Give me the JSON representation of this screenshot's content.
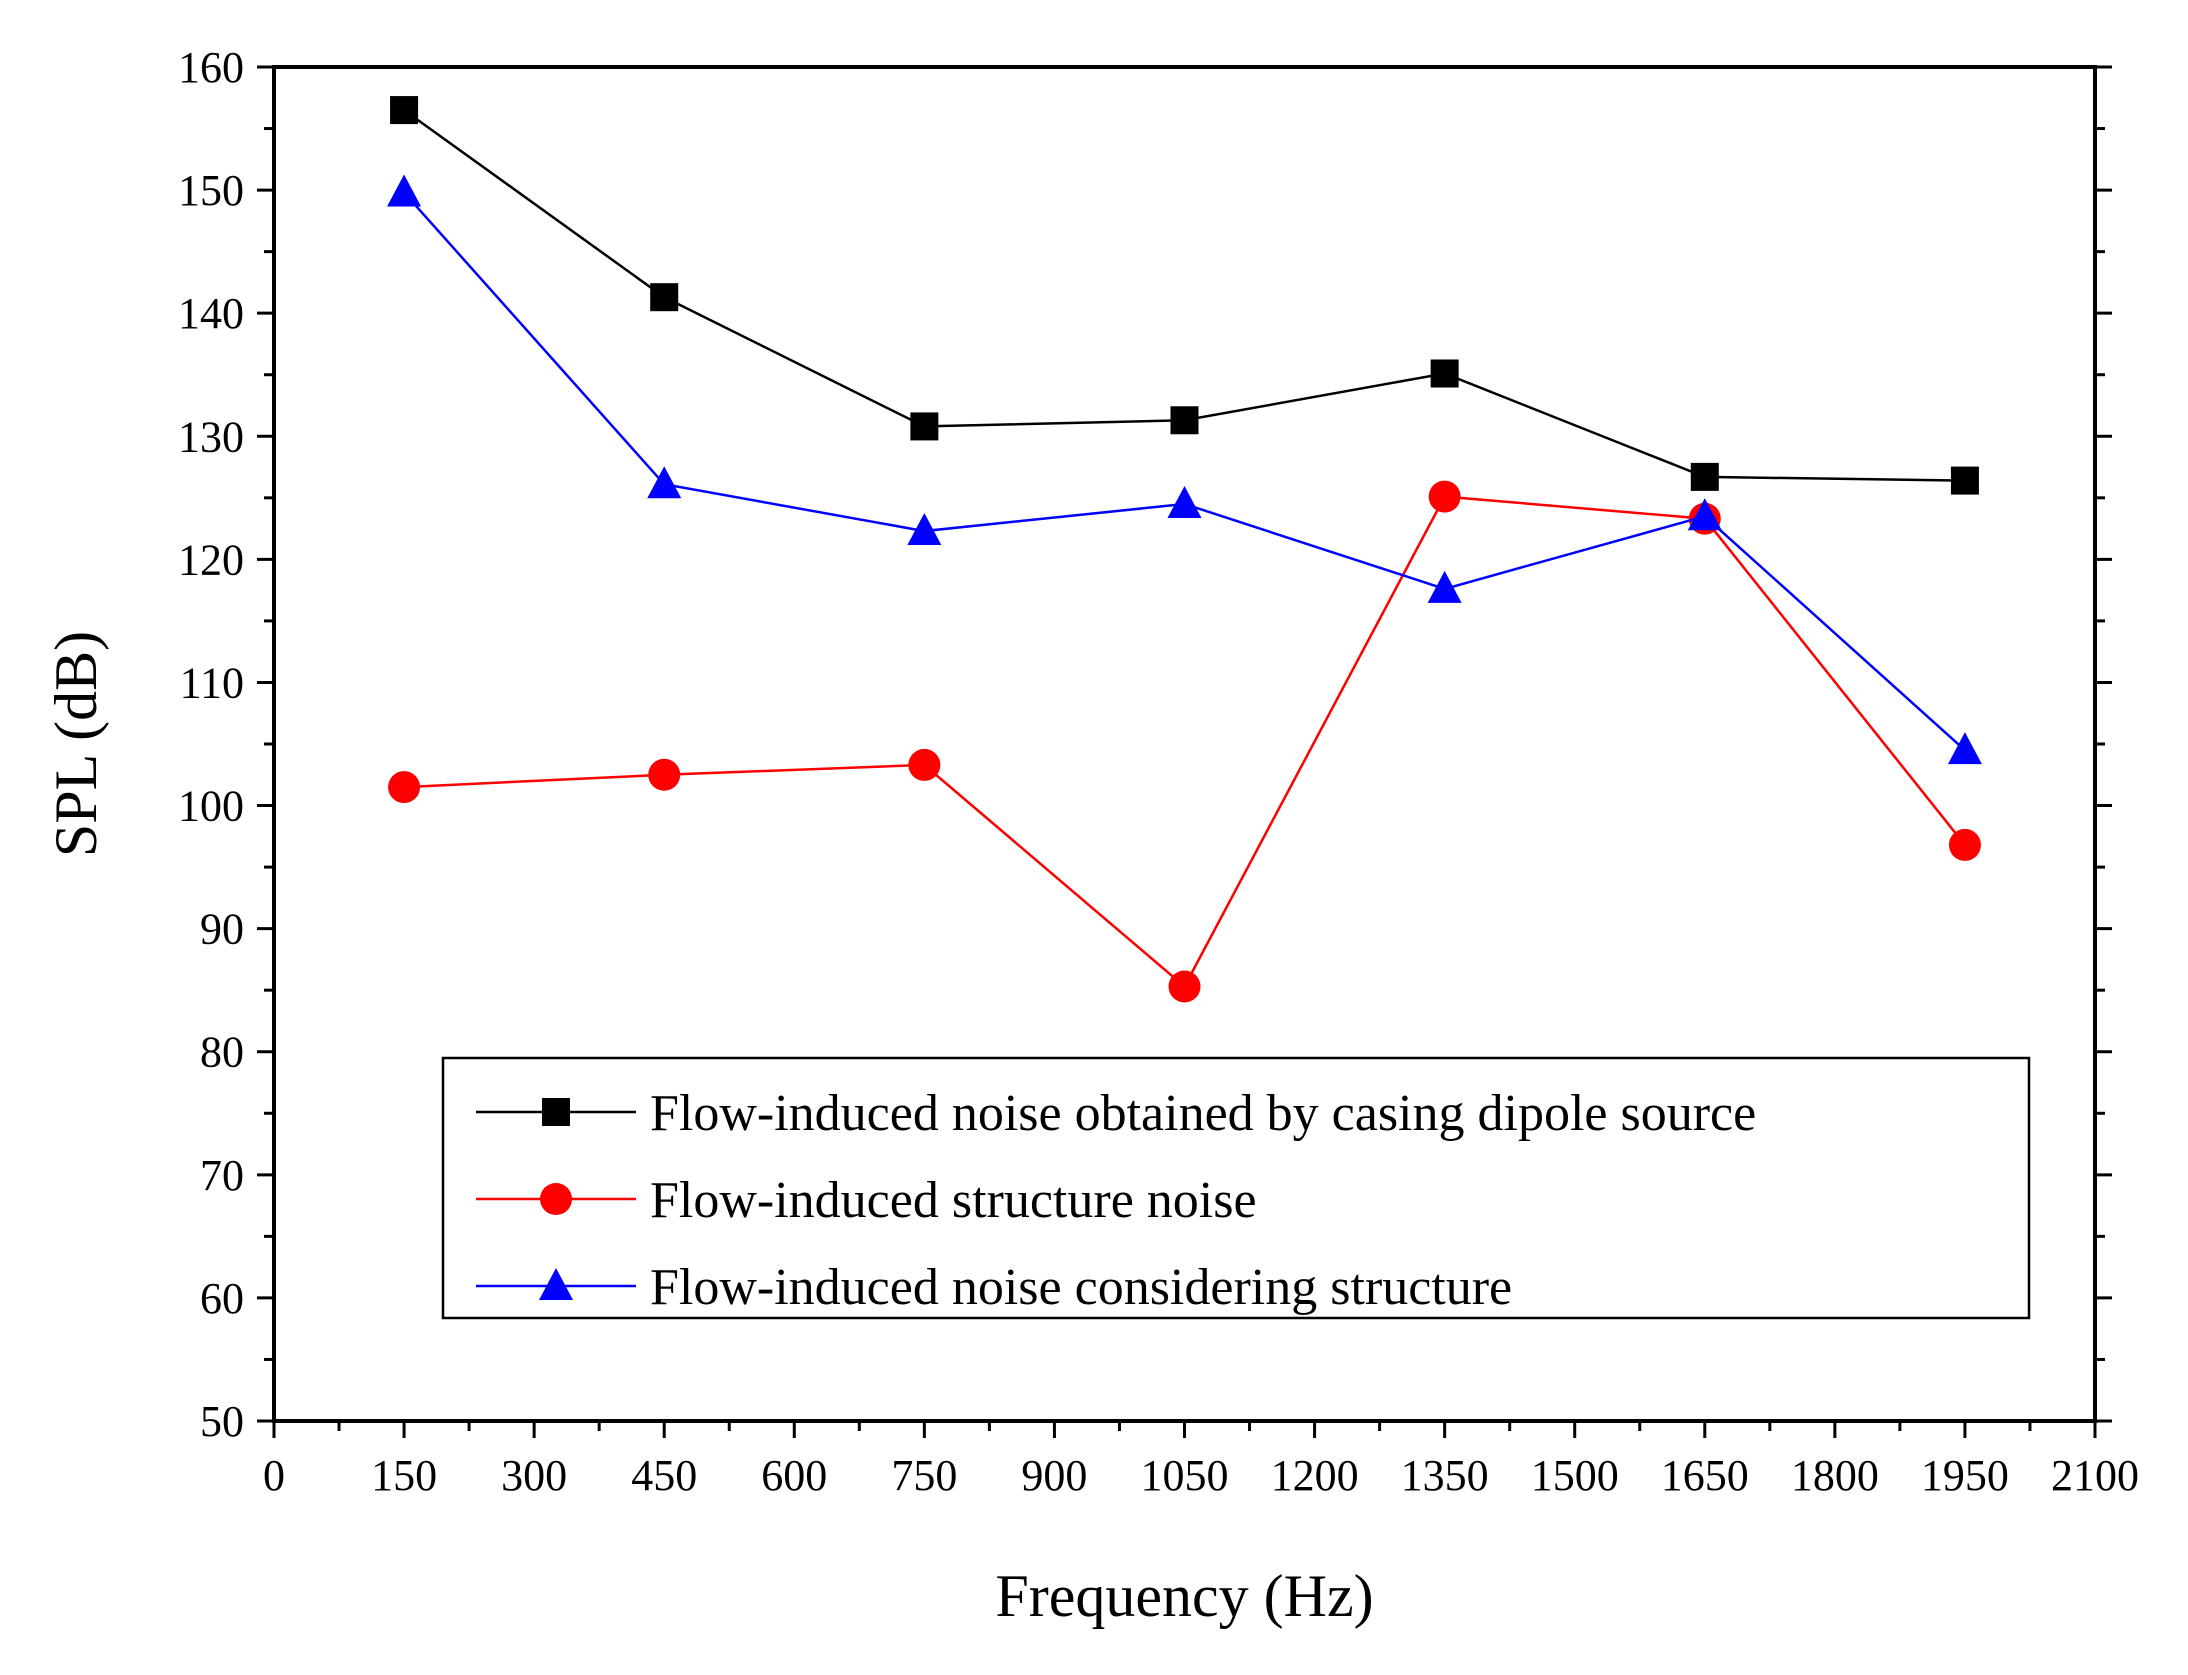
{
  "chart_data": {
    "type": "line",
    "title": "",
    "xlabel": "Frequency (Hz)",
    "ylabel": "SPL (dB)",
    "xlim": [
      0,
      2100
    ],
    "ylim": [
      50,
      160
    ],
    "xticks": [
      0,
      150,
      300,
      450,
      600,
      750,
      900,
      1050,
      1200,
      1350,
      1500,
      1650,
      1800,
      1950,
      2100
    ],
    "yticks": [
      50,
      60,
      70,
      80,
      90,
      100,
      110,
      120,
      130,
      140,
      150,
      160
    ],
    "xtick_labels": [
      "0",
      "150",
      "300",
      "450",
      "600",
      "750",
      "900",
      "1050",
      "1200",
      "1350",
      "1500",
      "1650",
      "1800",
      "1950",
      "2100"
    ],
    "ytick_labels": [
      "50",
      "60",
      "70",
      "80",
      "90",
      "100",
      "110",
      "120",
      "130",
      "140",
      "150",
      "160"
    ],
    "grid": false,
    "legend_position": "bottom-right",
    "x": [
      150,
      450,
      750,
      1050,
      1350,
      1650,
      1950
    ],
    "series": [
      {
        "name": "Flow-induced noise obtained by casing dipole source",
        "color": "#000000",
        "marker": "square",
        "values": [
          156.5,
          141.3,
          130.8,
          131.3,
          135.1,
          126.7,
          126.4
        ]
      },
      {
        "name": "Flow-induced structure noise",
        "color": "#ff0000",
        "marker": "circle",
        "values": [
          101.5,
          102.5,
          103.3,
          85.3,
          125.1,
          123.3,
          96.8
        ]
      },
      {
        "name": "Flow-induced noise considering structure",
        "color": "#0000ff",
        "marker": "triangle",
        "values": [
          149.8,
          126.1,
          122.3,
          124.5,
          117.6,
          123.5,
          104.5
        ]
      }
    ]
  }
}
